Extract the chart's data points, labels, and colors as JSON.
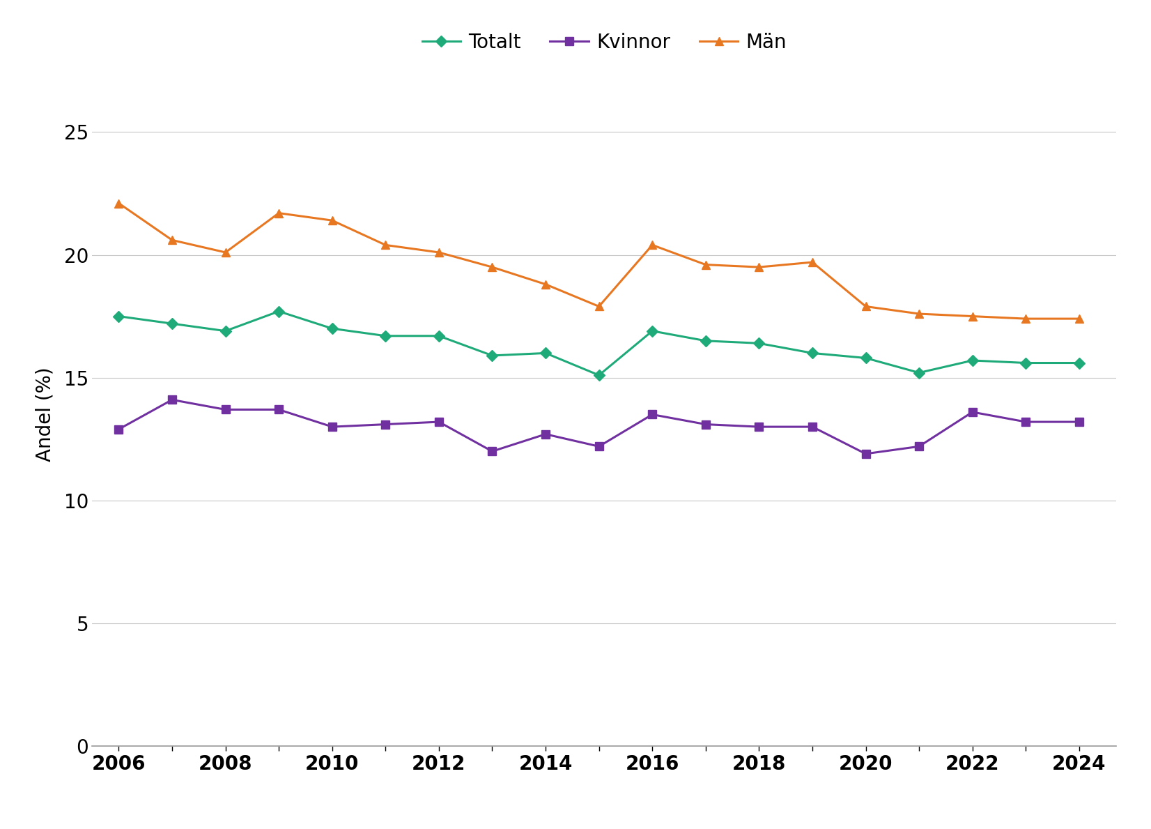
{
  "years": [
    2006,
    2007,
    2008,
    2009,
    2010,
    2011,
    2012,
    2013,
    2014,
    2015,
    2016,
    2017,
    2018,
    2019,
    2020,
    2021,
    2022,
    2023,
    2024
  ],
  "totalt": [
    17.5,
    17.2,
    16.9,
    17.7,
    17.0,
    16.7,
    16.7,
    15.9,
    16.0,
    15.1,
    16.9,
    16.5,
    16.4,
    16.0,
    15.8,
    15.2,
    15.7,
    15.6,
    15.6
  ],
  "kvinnor": [
    12.9,
    14.1,
    13.7,
    13.7,
    13.0,
    13.1,
    13.2,
    12.0,
    12.7,
    12.2,
    13.5,
    13.1,
    13.0,
    13.0,
    11.9,
    12.2,
    13.6,
    13.2,
    13.2
  ],
  "man": [
    22.1,
    20.6,
    20.1,
    21.7,
    21.4,
    20.4,
    20.1,
    19.5,
    18.8,
    17.9,
    20.4,
    19.6,
    19.5,
    19.7,
    17.9,
    17.6,
    17.5,
    17.4,
    17.4
  ],
  "totalt_color": "#1faa7a",
  "kvinnor_color": "#7030a0",
  "man_color": "#e87722",
  "ylabel": "Andel (%)",
  "ylim": [
    0,
    27
  ],
  "yticks": [
    0,
    5,
    10,
    15,
    20,
    25
  ],
  "xtick_labels": [
    "2006",
    "",
    "2008",
    "",
    "2010",
    "",
    "2012",
    "",
    "2014",
    "",
    "2016",
    "",
    "2018",
    "",
    "2020",
    "",
    "2022",
    "",
    "2024"
  ],
  "legend_labels": [
    "Totalt",
    "Kvinnor",
    "Män"
  ],
  "background_color": "#ffffff",
  "grid_color": "#c8c8c8"
}
